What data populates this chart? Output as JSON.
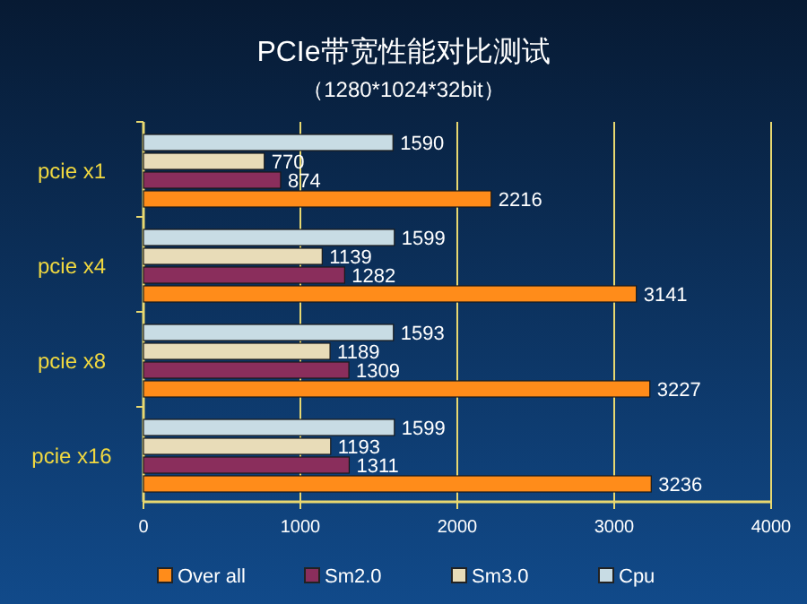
{
  "chart_data": {
    "type": "bar",
    "orientation": "horizontal",
    "title": "PCIe带宽性能对比测试",
    "subtitle": "（1280*1024*32bit）",
    "categories": [
      "pcie x1",
      "pcie x4",
      "pcie x8",
      "pcie x16"
    ],
    "series": [
      {
        "name": "Over all",
        "color": "#ff8c1a",
        "values": [
          2216,
          3141,
          3227,
          3236
        ]
      },
      {
        "name": "Sm2.0",
        "color": "#8a2e5c",
        "values": [
          874,
          1282,
          1309,
          1311
        ]
      },
      {
        "name": "Sm3.0",
        "color": "#e8dcb8",
        "values": [
          770,
          1139,
          1189,
          1193
        ]
      },
      {
        "name": "Cpu",
        "color": "#c8dce4",
        "values": [
          1590,
          1599,
          1593,
          1599
        ]
      }
    ],
    "xlim": [
      0,
      4000
    ],
    "xticks": [
      0,
      1000,
      2000,
      3000,
      4000
    ],
    "grid": "x",
    "legend": "bottom",
    "data_labels": true
  }
}
